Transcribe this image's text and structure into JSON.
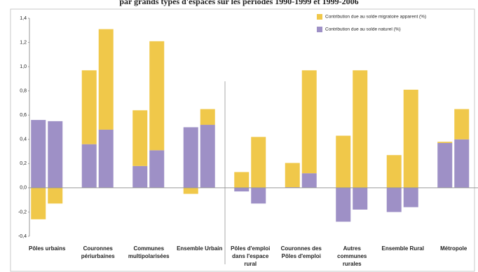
{
  "chart_data": {
    "type": "stacked-bar",
    "title": "par grands types d'espaces sur les périodes 1990-1999 et 1999-2006",
    "categories": [
      [
        "Pôles urbains"
      ],
      [
        "Couronnes",
        "périurbaines"
      ],
      [
        "Communes",
        "multipolarisées"
      ],
      [
        "Ensemble Urbain"
      ],
      [
        "Pôles d'emploi",
        "dans l'espace",
        "rural"
      ],
      [
        "Couronnes des",
        "Pôles d'emploi"
      ],
      [
        "Autres",
        "communes",
        "rurales"
      ],
      [
        "Ensemble Rural"
      ],
      [
        "Métropole"
      ]
    ],
    "series": [
      {
        "name": "Contribution due au solde naturel (%)",
        "color": "#9e90c6",
        "values": [
          [
            0.56,
            0.55
          ],
          [
            0.36,
            0.48
          ],
          [
            0.18,
            0.31
          ],
          [
            0.5,
            0.52
          ],
          [
            -0.03,
            -0.13
          ],
          [
            0.005,
            0.12
          ],
          [
            -0.28,
            -0.18
          ],
          [
            -0.2,
            -0.16
          ],
          [
            0.37,
            0.4
          ]
        ]
      },
      {
        "name": "Contribution due au solde migratoire apparent (%)",
        "color": "#f0c84a",
        "values": [
          [
            -0.26,
            -0.13
          ],
          [
            0.61,
            0.83
          ],
          [
            0.46,
            0.9
          ],
          [
            -0.05,
            0.13
          ],
          [
            0.13,
            0.42
          ],
          [
            0.2,
            0.85
          ],
          [
            0.43,
            0.97
          ],
          [
            0.27,
            0.81
          ],
          [
            0.01,
            0.25
          ]
        ]
      }
    ],
    "legend_order": [
      1,
      0
    ],
    "ylim": [
      -0.4,
      1.4
    ],
    "yticks": [
      {
        "value": -0.4,
        "label": "-0,4"
      },
      {
        "value": -0.2,
        "label": "-0,2"
      },
      {
        "value": 0,
        "label": "0,0"
      },
      {
        "value": 0.2,
        "label": "0,2"
      },
      {
        "value": 0.4,
        "label": "0,4"
      },
      {
        "value": 0.6,
        "label": "0,6"
      },
      {
        "value": 0.8,
        "label": "0,8"
      },
      {
        "value": 1,
        "label": "1,0"
      },
      {
        "value": 1.2,
        "label": "1,2"
      },
      {
        "value": 1.4,
        "label": "1,4"
      }
    ],
    "separator_after": 4
  }
}
